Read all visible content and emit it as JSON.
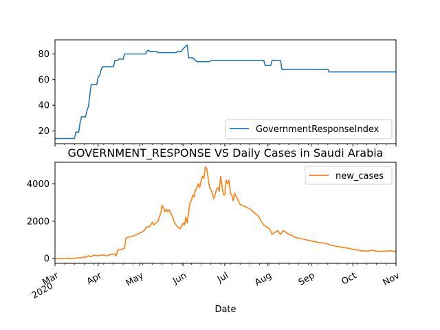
{
  "chart_data": [
    {
      "type": "line",
      "title": "",
      "xlabel": "",
      "ylabel": "",
      "ylim": [
        10,
        91
      ],
      "yticks": [
        20,
        40,
        60,
        80
      ],
      "grid": false,
      "legend_position": "lower-right",
      "series": [
        {
          "name": "GovernmentResponseIndex",
          "color": "#1f77b4",
          "points": [
            [
              "2020-03-01",
              14
            ],
            [
              "2020-03-15",
              14
            ],
            [
              "2020-03-16",
              19
            ],
            [
              "2020-03-18",
              19
            ],
            [
              "2020-03-19",
              26
            ],
            [
              "2020-03-20",
              31
            ],
            [
              "2020-03-23",
              31
            ],
            [
              "2020-03-24",
              36
            ],
            [
              "2020-03-25",
              39
            ],
            [
              "2020-03-26",
              48
            ],
            [
              "2020-03-27",
              56
            ],
            [
              "2020-03-31",
              56
            ],
            [
              "2020-04-01",
              62
            ],
            [
              "2020-04-02",
              63
            ],
            [
              "2020-04-03",
              67
            ],
            [
              "2020-04-04",
              70
            ],
            [
              "2020-04-12",
              70
            ],
            [
              "2020-04-13",
              75
            ],
            [
              "2020-04-15",
              75
            ],
            [
              "2020-04-16",
              76
            ],
            [
              "2020-04-19",
              76
            ],
            [
              "2020-04-20",
              80
            ],
            [
              "2020-05-05",
              80
            ],
            [
              "2020-05-06",
              82
            ],
            [
              "2020-05-07",
              83
            ],
            [
              "2020-05-08",
              82
            ],
            [
              "2020-05-13",
              82
            ],
            [
              "2020-05-14",
              81
            ],
            [
              "2020-05-27",
              81
            ],
            [
              "2020-05-28",
              82
            ],
            [
              "2020-05-31",
              82
            ],
            [
              "2020-06-01",
              84
            ],
            [
              "2020-06-03",
              86
            ],
            [
              "2020-06-04",
              87
            ],
            [
              "2020-06-05",
              77
            ],
            [
              "2020-06-08",
              77
            ],
            [
              "2020-06-09",
              76
            ],
            [
              "2020-06-10",
              75
            ],
            [
              "2020-06-11",
              74
            ],
            [
              "2020-06-20",
              74
            ],
            [
              "2020-06-21",
              75
            ],
            [
              "2020-07-29",
              75
            ],
            [
              "2020-07-30",
              71
            ],
            [
              "2020-08-03",
              71
            ],
            [
              "2020-08-04",
              75
            ],
            [
              "2020-08-10",
              75
            ],
            [
              "2020-08-11",
              68
            ],
            [
              "2020-09-13",
              68
            ],
            [
              "2020-09-14",
              66
            ],
            [
              "2020-11-01",
              66
            ]
          ]
        }
      ]
    },
    {
      "type": "line",
      "title": "GOVERNMENT_RESPONSE VS Daily Cases in Saudi Arabia",
      "xlabel": "Date",
      "ylabel": "",
      "ylim": [
        -250,
        5150
      ],
      "yticks": [
        0,
        2000,
        4000
      ],
      "xlim": [
        "2020-03-01",
        "2020-11-01"
      ],
      "xticks": [
        {
          "date": "2020-03-01",
          "label": "Mar",
          "sublabel": "2020"
        },
        {
          "date": "2020-04-01",
          "label": "Apr",
          "sublabel": ""
        },
        {
          "date": "2020-05-01",
          "label": "May",
          "sublabel": ""
        },
        {
          "date": "2020-06-01",
          "label": "Jun",
          "sublabel": ""
        },
        {
          "date": "2020-07-01",
          "label": "Jul",
          "sublabel": ""
        },
        {
          "date": "2020-08-01",
          "label": "Aug",
          "sublabel": ""
        },
        {
          "date": "2020-09-01",
          "label": "Sep",
          "sublabel": ""
        },
        {
          "date": "2020-10-01",
          "label": "Oct",
          "sublabel": ""
        },
        {
          "date": "2020-11-01",
          "label": "Nov",
          "sublabel": ""
        }
      ],
      "grid": false,
      "legend_position": "upper-right",
      "series": [
        {
          "name": "new_cases",
          "color": "#ff7f0e",
          "points": [
            [
              "2020-03-01",
              0
            ],
            [
              "2020-03-10",
              3
            ],
            [
              "2020-03-15",
              20
            ],
            [
              "2020-03-18",
              40
            ],
            [
              "2020-03-20",
              45
            ],
            [
              "2020-03-22",
              100
            ],
            [
              "2020-03-23",
              60
            ],
            [
              "2020-03-25",
              150
            ],
            [
              "2020-03-27",
              100
            ],
            [
              "2020-03-29",
              200
            ],
            [
              "2020-03-31",
              150
            ],
            [
              "2020-04-02",
              170
            ],
            [
              "2020-04-05",
              200
            ],
            [
              "2020-04-07",
              140
            ],
            [
              "2020-04-09",
              200
            ],
            [
              "2020-04-11",
              230
            ],
            [
              "2020-04-13",
              250
            ],
            [
              "2020-04-14",
              150
            ],
            [
              "2020-04-15",
              450
            ],
            [
              "2020-04-18",
              500
            ],
            [
              "2020-04-20",
              550
            ],
            [
              "2020-04-21",
              1100
            ],
            [
              "2020-04-23",
              1150
            ],
            [
              "2020-04-26",
              1200
            ],
            [
              "2020-04-29",
              1300
            ],
            [
              "2020-05-02",
              1400
            ],
            [
              "2020-05-04",
              1500
            ],
            [
              "2020-05-06",
              1700
            ],
            [
              "2020-05-08",
              1700
            ],
            [
              "2020-05-10",
              1950
            ],
            [
              "2020-05-11",
              1800
            ],
            [
              "2020-05-14",
              2000
            ],
            [
              "2020-05-16",
              2450
            ],
            [
              "2020-05-17",
              2850
            ],
            [
              "2020-05-18",
              2700
            ],
            [
              "2020-05-19",
              2500
            ],
            [
              "2020-05-20",
              2650
            ],
            [
              "2020-05-21",
              2500
            ],
            [
              "2020-05-22",
              2600
            ],
            [
              "2020-05-24",
              2300
            ],
            [
              "2020-05-26",
              1900
            ],
            [
              "2020-05-28",
              1700
            ],
            [
              "2020-05-30",
              1600
            ],
            [
              "2020-06-01",
              1900
            ],
            [
              "2020-06-02",
              1800
            ],
            [
              "2020-06-03",
              2200
            ],
            [
              "2020-06-04",
              1900
            ],
            [
              "2020-06-05",
              2500
            ],
            [
              "2020-06-06",
              3000
            ],
            [
              "2020-06-07",
              3100
            ],
            [
              "2020-06-08",
              3400
            ],
            [
              "2020-06-09",
              3300
            ],
            [
              "2020-06-10",
              3700
            ],
            [
              "2020-06-11",
              3800
            ],
            [
              "2020-06-12",
              4000
            ],
            [
              "2020-06-13",
              3800
            ],
            [
              "2020-06-14",
              4200
            ],
            [
              "2020-06-15",
              4400
            ],
            [
              "2020-06-16",
              4300
            ],
            [
              "2020-06-17",
              4900
            ],
            [
              "2020-06-18",
              4800
            ],
            [
              "2020-06-19",
              4300
            ],
            [
              "2020-06-20",
              3800
            ],
            [
              "2020-06-21",
              3700
            ],
            [
              "2020-06-22",
              3500
            ],
            [
              "2020-06-23",
              3200
            ],
            [
              "2020-06-24",
              3400
            ],
            [
              "2020-06-25",
              3700
            ],
            [
              "2020-06-26",
              3800
            ],
            [
              "2020-06-27",
              3600
            ],
            [
              "2020-06-28",
              4400
            ],
            [
              "2020-06-29",
              3900
            ],
            [
              "2020-06-30",
              3400
            ],
            [
              "2020-07-01",
              3400
            ],
            [
              "2020-07-02",
              4200
            ],
            [
              "2020-07-03",
              4000
            ],
            [
              "2020-07-04",
              4200
            ],
            [
              "2020-07-05",
              3500
            ],
            [
              "2020-07-06",
              3400
            ],
            [
              "2020-07-07",
              3100
            ],
            [
              "2020-07-08",
              3500
            ],
            [
              "2020-07-10",
              3200
            ],
            [
              "2020-07-12",
              2900
            ],
            [
              "2020-07-15",
              2800
            ],
            [
              "2020-07-18",
              2700
            ],
            [
              "2020-07-20",
              2600
            ],
            [
              "2020-07-23",
              2400
            ],
            [
              "2020-07-25",
              2300
            ],
            [
              "2020-07-27",
              2000
            ],
            [
              "2020-07-29",
              1800
            ],
            [
              "2020-07-31",
              1700
            ],
            [
              "2020-08-02",
              1600
            ],
            [
              "2020-08-04",
              1300
            ],
            [
              "2020-08-06",
              1400
            ],
            [
              "2020-08-08",
              1500
            ],
            [
              "2020-08-10",
              1300
            ],
            [
              "2020-08-12",
              1500
            ],
            [
              "2020-08-14",
              1400
            ],
            [
              "2020-08-16",
              1300
            ],
            [
              "2020-08-18",
              1250
            ],
            [
              "2020-08-20",
              1150
            ],
            [
              "2020-08-23",
              1100
            ],
            [
              "2020-08-26",
              1050
            ],
            [
              "2020-08-29",
              1000
            ],
            [
              "2020-09-01",
              950
            ],
            [
              "2020-09-04",
              900
            ],
            [
              "2020-09-08",
              850
            ],
            [
              "2020-09-12",
              800
            ],
            [
              "2020-09-16",
              700
            ],
            [
              "2020-09-20",
              650
            ],
            [
              "2020-09-24",
              600
            ],
            [
              "2020-09-28",
              550
            ],
            [
              "2020-10-01",
              500
            ],
            [
              "2020-10-05",
              450
            ],
            [
              "2020-10-08",
              420
            ],
            [
              "2020-10-12",
              400
            ],
            [
              "2020-10-15",
              450
            ],
            [
              "2020-10-18",
              400
            ],
            [
              "2020-10-20",
              380
            ],
            [
              "2020-10-24",
              400
            ],
            [
              "2020-10-28",
              420
            ],
            [
              "2020-11-01",
              380
            ]
          ]
        }
      ]
    }
  ]
}
